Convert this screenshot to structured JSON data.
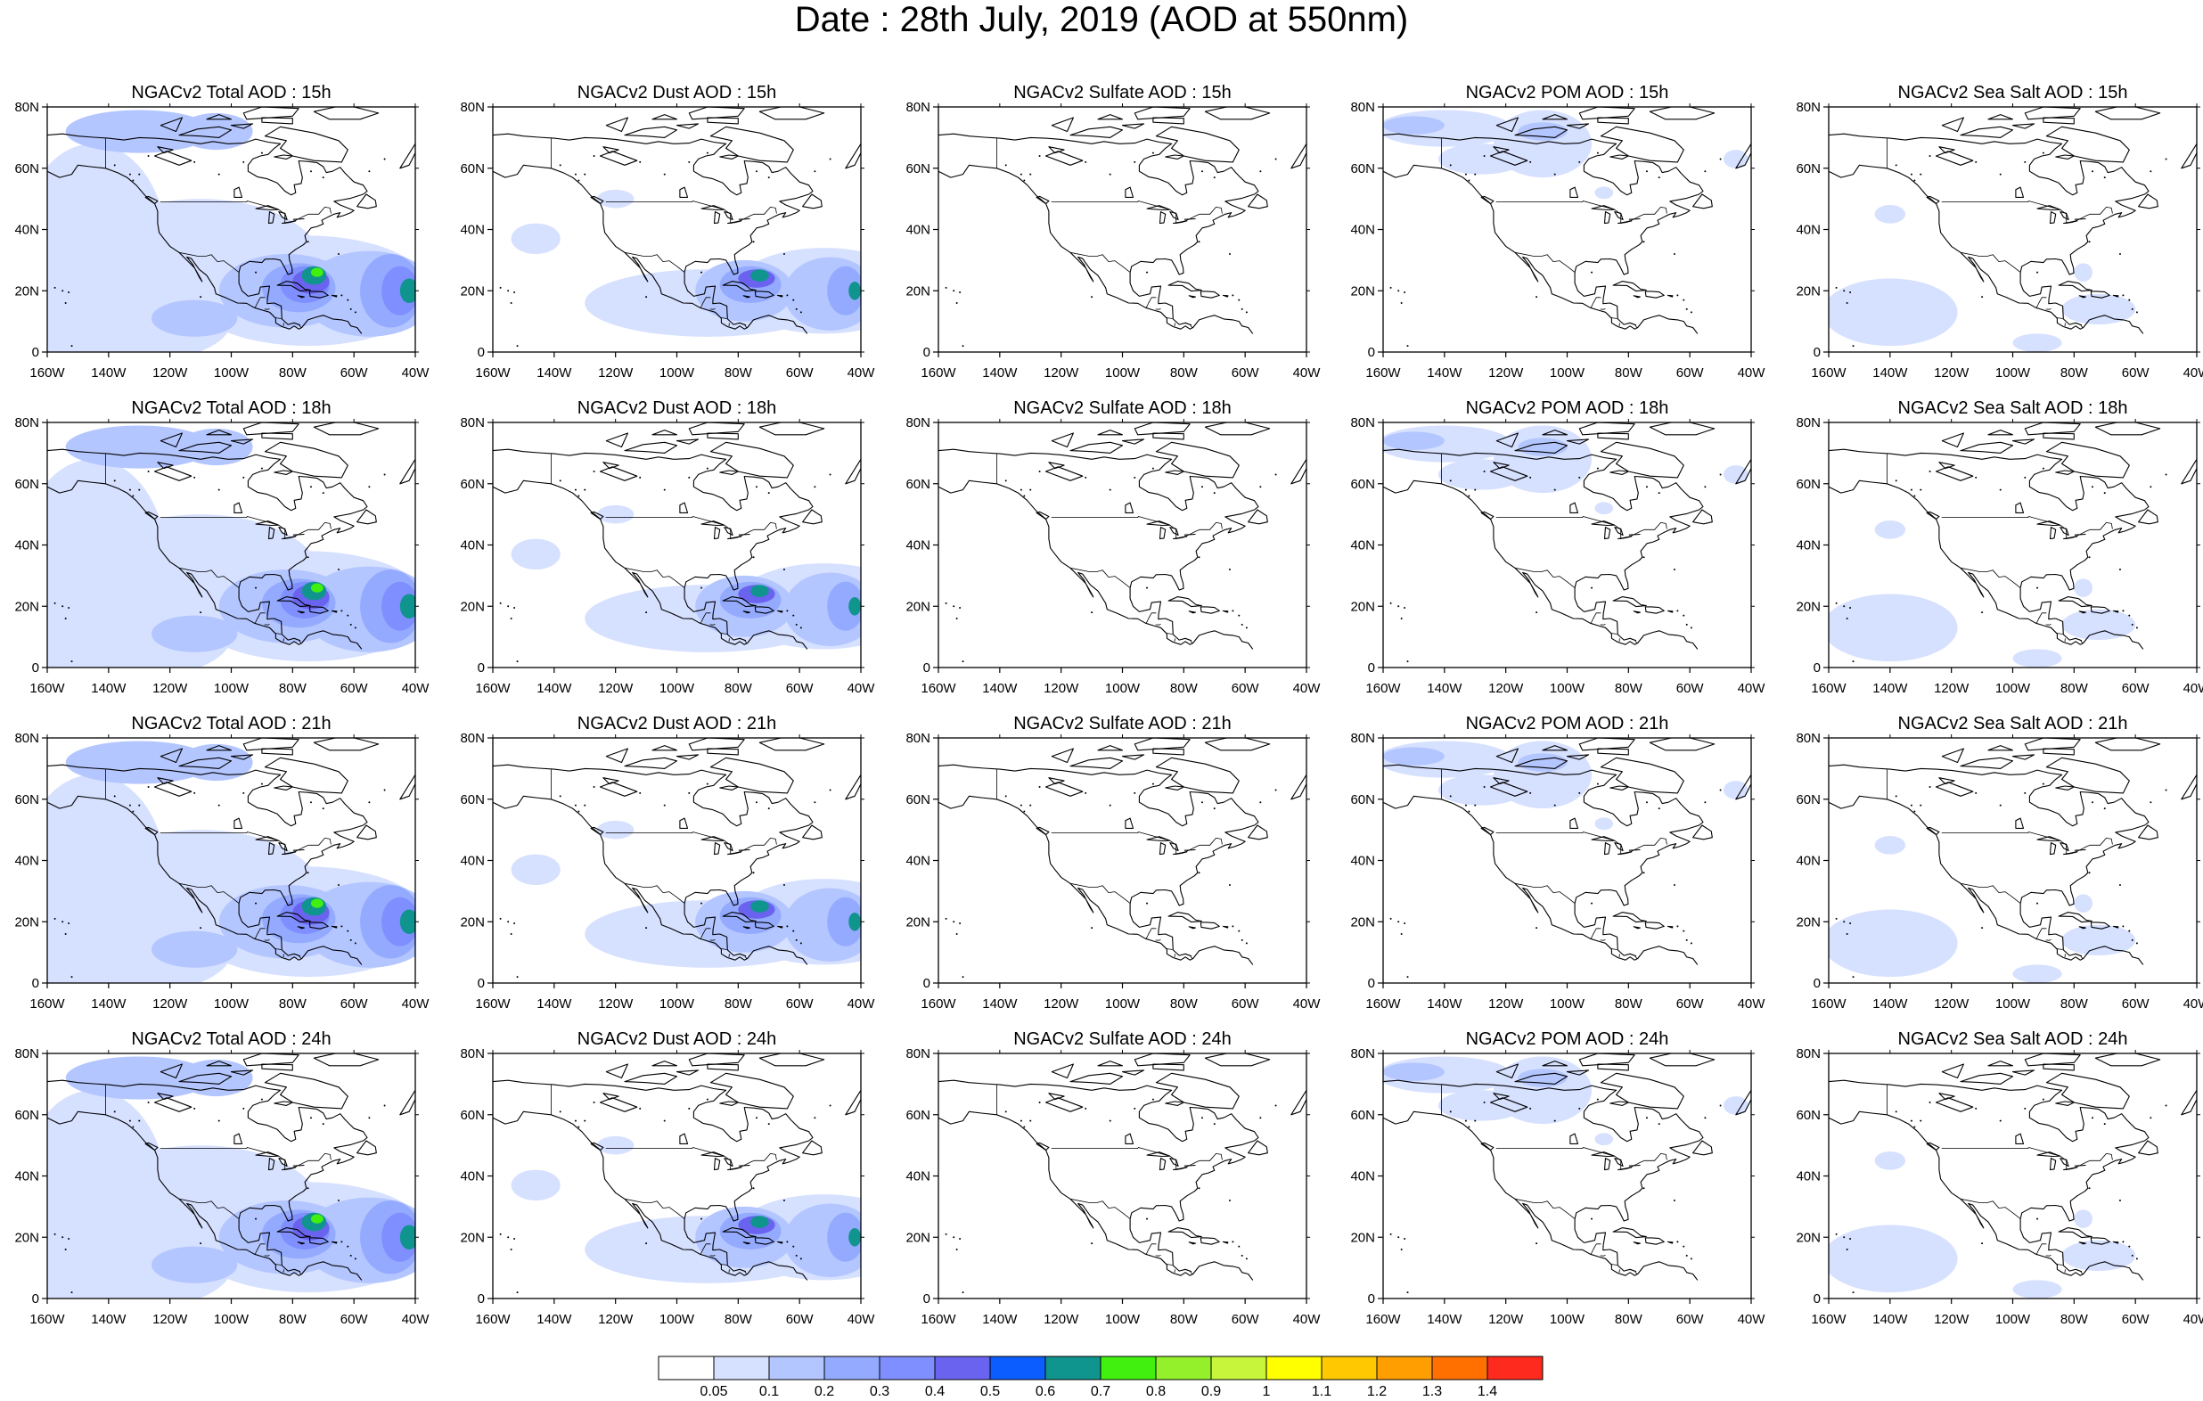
{
  "title": "Date : 28th July, 2019 (AOD at 550nm)",
  "panels": [
    {
      "title": "NGACv2 Total AOD : 15h",
      "species": "total",
      "hour": "15h"
    },
    {
      "title": "NGACv2 Dust AOD : 15h",
      "species": "dust",
      "hour": "15h"
    },
    {
      "title": "NGACv2 Sulfate AOD : 15h",
      "species": "sulfate",
      "hour": "15h"
    },
    {
      "title": "NGACv2 POM AOD : 15h",
      "species": "pom",
      "hour": "15h"
    },
    {
      "title": "NGACv2 Sea Salt AOD : 15h",
      "species": "seasalt",
      "hour": "15h"
    },
    {
      "title": "NGACv2 Total AOD : 18h",
      "species": "total",
      "hour": "18h"
    },
    {
      "title": "NGACv2 Dust AOD : 18h",
      "species": "dust",
      "hour": "18h"
    },
    {
      "title": "NGACv2 Sulfate AOD : 18h",
      "species": "sulfate",
      "hour": "18h"
    },
    {
      "title": "NGACv2 POM AOD : 18h",
      "species": "pom",
      "hour": "18h"
    },
    {
      "title": "NGACv2 Sea Salt AOD : 18h",
      "species": "seasalt",
      "hour": "18h"
    },
    {
      "title": "NGACv2 Total AOD : 21h",
      "species": "total",
      "hour": "21h"
    },
    {
      "title": "NGACv2 Dust AOD : 21h",
      "species": "dust",
      "hour": "21h"
    },
    {
      "title": "NGACv2 Sulfate AOD : 21h",
      "species": "sulfate",
      "hour": "21h"
    },
    {
      "title": "NGACv2 POM AOD : 21h",
      "species": "pom",
      "hour": "21h"
    },
    {
      "title": "NGACv2 Sea Salt AOD : 21h",
      "species": "seasalt",
      "hour": "21h"
    },
    {
      "title": "NGACv2 Total AOD : 24h",
      "species": "total",
      "hour": "24h"
    },
    {
      "title": "NGACv2 Dust AOD : 24h",
      "species": "dust",
      "hour": "24h"
    },
    {
      "title": "NGACv2 Sulfate AOD : 24h",
      "species": "sulfate",
      "hour": "24h"
    },
    {
      "title": "NGACv2 POM AOD : 24h",
      "species": "pom",
      "hour": "24h"
    },
    {
      "title": "NGACv2 Sea Salt  AOD : 24h",
      "species": "seasalt",
      "hour": "24h"
    }
  ],
  "axes": {
    "lat_ticks": [
      "0",
      "20N",
      "40N",
      "60N",
      "80N"
    ],
    "lat_values": [
      0,
      20,
      40,
      60,
      80
    ],
    "lon_ticks": [
      "160W",
      "140W",
      "120W",
      "100W",
      "80W",
      "60W",
      "40W"
    ],
    "lon_values": [
      -160,
      -140,
      -120,
      -100,
      -80,
      -60,
      -40
    ],
    "lon_range": [
      -160,
      -40
    ],
    "lat_range": [
      0,
      80
    ]
  },
  "colorbar": {
    "labels": [
      "0.05",
      "0.1",
      "0.2",
      "0.3",
      "0.4",
      "0.5",
      "0.6",
      "0.7",
      "0.8",
      "0.9",
      "1",
      "1.1",
      "1.2",
      "1.3",
      "1.4"
    ],
    "colors": [
      "#ffffff",
      "#d6e0ff",
      "#b4c6ff",
      "#94aaff",
      "#7f8fff",
      "#6a63ef",
      "#0c5dff",
      "#10948e",
      "#42f010",
      "#93f02a",
      "#c6f53c",
      "#ffff00",
      "#ffc800",
      "#ff9e00",
      "#ff7000",
      "#ff2a1e"
    ]
  }
}
